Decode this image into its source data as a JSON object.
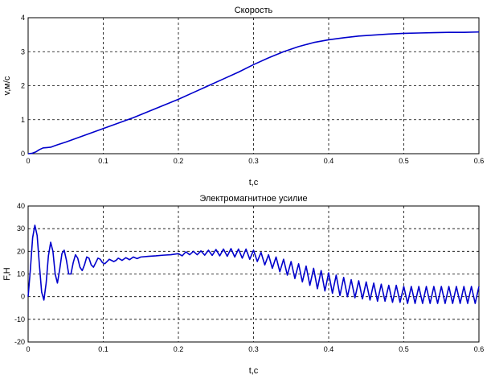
{
  "chart_data": [
    {
      "type": "line",
      "title": "Скорость",
      "xlabel": "t,c",
      "ylabel": "v,м/с",
      "xlim": [
        0,
        0.6
      ],
      "ylim": [
        0,
        4
      ],
      "xticks": [
        0,
        0.1,
        0.2,
        0.3,
        0.4,
        0.5,
        0.6
      ],
      "xtick_labels": [
        "0",
        "0.1",
        "0.2",
        "0.3",
        "0.4",
        "0.5",
        "0.6"
      ],
      "yticks": [
        0,
        1,
        2,
        3,
        4
      ],
      "ytick_labels": [
        "0",
        "1",
        "2",
        "3",
        "4"
      ],
      "grid": true,
      "line_color": "#0000cc",
      "x": [
        0,
        0.005,
        0.01,
        0.015,
        0.02,
        0.025,
        0.03,
        0.035,
        0.04,
        0.05,
        0.06,
        0.07,
        0.08,
        0.09,
        0.1,
        0.12,
        0.14,
        0.16,
        0.18,
        0.2,
        0.22,
        0.24,
        0.26,
        0.28,
        0.3,
        0.32,
        0.34,
        0.36,
        0.38,
        0.4,
        0.42,
        0.44,
        0.46,
        0.48,
        0.5,
        0.52,
        0.54,
        0.56,
        0.58,
        0.6
      ],
      "y": [
        0,
        0.01,
        0.05,
        0.12,
        0.17,
        0.18,
        0.19,
        0.23,
        0.27,
        0.34,
        0.42,
        0.5,
        0.58,
        0.66,
        0.74,
        0.9,
        1.06,
        1.24,
        1.42,
        1.6,
        1.8,
        2.0,
        2.2,
        2.4,
        2.62,
        2.82,
        3.0,
        3.15,
        3.27,
        3.35,
        3.41,
        3.46,
        3.49,
        3.52,
        3.54,
        3.55,
        3.56,
        3.57,
        3.57,
        3.58
      ]
    },
    {
      "type": "line",
      "title": "Электромагнитное усилие",
      "xlabel": "t,c",
      "ylabel": "F,H",
      "xlim": [
        0,
        0.6
      ],
      "ylim": [
        -20,
        40
      ],
      "xticks": [
        0,
        0.1,
        0.2,
        0.3,
        0.4,
        0.5,
        0.6
      ],
      "xtick_labels": [
        "0",
        "0.1",
        "0.2",
        "0.3",
        "0.4",
        "0.5",
        "0.6"
      ],
      "yticks": [
        -20,
        -10,
        0,
        10,
        20,
        30,
        40
      ],
      "ytick_labels": [
        "-20",
        "-10",
        "0",
        "10",
        "20",
        "30",
        "40"
      ],
      "grid": true,
      "line_color": "#0000cc",
      "x": [
        0,
        0.003,
        0.006,
        0.009,
        0.012,
        0.015,
        0.018,
        0.021,
        0.024,
        0.027,
        0.03,
        0.033,
        0.036,
        0.039,
        0.042,
        0.045,
        0.048,
        0.051,
        0.054,
        0.057,
        0.06,
        0.063,
        0.066,
        0.069,
        0.072,
        0.075,
        0.078,
        0.081,
        0.084,
        0.087,
        0.09,
        0.093,
        0.096,
        0.099,
        0.102,
        0.105,
        0.108,
        0.111,
        0.114,
        0.117,
        0.12,
        0.125,
        0.13,
        0.135,
        0.14,
        0.145,
        0.15,
        0.16,
        0.17,
        0.18,
        0.19,
        0.2,
        0.205,
        0.21,
        0.215,
        0.22,
        0.225,
        0.23,
        0.235,
        0.24,
        0.245,
        0.25,
        0.255,
        0.26,
        0.265,
        0.27,
        0.275,
        0.28,
        0.285,
        0.29,
        0.295,
        0.3,
        0.305,
        0.31,
        0.315,
        0.32,
        0.325,
        0.33,
        0.335,
        0.34,
        0.345,
        0.35,
        0.355,
        0.36,
        0.365,
        0.37,
        0.375,
        0.38,
        0.385,
        0.39,
        0.395,
        0.4,
        0.405,
        0.41,
        0.415,
        0.42,
        0.425,
        0.43,
        0.435,
        0.44,
        0.445,
        0.45,
        0.455,
        0.46,
        0.465,
        0.47,
        0.475,
        0.48,
        0.485,
        0.49,
        0.495,
        0.5,
        0.505,
        0.51,
        0.515,
        0.52,
        0.525,
        0.53,
        0.535,
        0.54,
        0.545,
        0.55,
        0.555,
        0.56,
        0.565,
        0.57,
        0.575,
        0.58,
        0.585,
        0.59,
        0.595,
        0.6
      ],
      "y": [
        0,
        12,
        26,
        31.5,
        27,
        14,
        2,
        -1.5,
        6,
        18,
        24,
        20,
        10,
        6,
        12,
        19,
        20.5,
        16,
        10,
        10,
        15,
        18.5,
        17,
        13,
        11.5,
        14,
        17.5,
        17,
        14,
        13,
        15,
        17,
        16.5,
        15,
        14.5,
        15.5,
        16.5,
        16,
        15.5,
        16,
        17,
        16,
        17.2,
        16.3,
        17.5,
        16.8,
        17.5,
        17.8,
        18,
        18.3,
        18.5,
        19,
        18,
        19.8,
        18.5,
        20,
        18.5,
        20.2,
        18.3,
        20.5,
        18.2,
        20.8,
        18,
        21,
        17.8,
        21.2,
        17.5,
        21,
        17,
        21,
        16.5,
        20.5,
        15.5,
        19.5,
        14,
        18.5,
        12.5,
        17.5,
        11,
        16.5,
        9.5,
        15.5,
        8,
        14.5,
        6.5,
        13.5,
        5,
        12.5,
        3.5,
        11.5,
        2.5,
        10.5,
        1.5,
        9.5,
        0.5,
        8.5,
        0,
        7.5,
        -0.5,
        7,
        -1,
        6.5,
        -1.5,
        6,
        -2,
        5.5,
        -2,
        5,
        -2.5,
        5,
        -2.5,
        4.5,
        -3,
        4.5,
        -3,
        4.5,
        -3,
        4.5,
        -3,
        4.5,
        -3,
        4.5,
        -3,
        4.5,
        -3,
        4.5,
        -3,
        4.5,
        -3,
        4.5,
        -3,
        4.5
      ]
    }
  ]
}
